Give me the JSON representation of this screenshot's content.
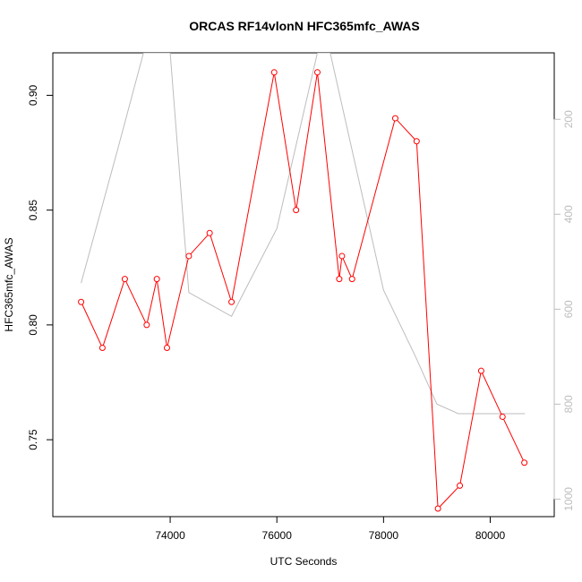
{
  "chart_data": {
    "type": "line",
    "title": "ORCAS RF14vlonN HFC365mfc_AWAS",
    "xlabel": "UTC Seconds",
    "ylabel": "HFC365mfc_AWAS",
    "xlim": [
      71800,
      81200
    ],
    "ylim": [
      0.7165,
      0.9185
    ],
    "x_ticks": [
      74000,
      76000,
      78000,
      80000
    ],
    "y_ticks": [
      0.75,
      0.8,
      0.85,
      0.9
    ],
    "y_tick_labels": [
      "0.75",
      "0.80",
      "0.85",
      "0.90"
    ],
    "y2_ticks": [
      200,
      400,
      600,
      800,
      1000
    ],
    "y2_lim": [
      1037,
      60
    ],
    "grid": false,
    "series": [
      {
        "color": "#ff0000",
        "marker": "open-circle",
        "axis": "left",
        "x": [
          72330,
          72730,
          73150,
          73560,
          73750,
          73940,
          74350,
          74740,
          75150,
          75950,
          76360,
          76760,
          77170,
          77220,
          77410,
          78220,
          78620,
          79020,
          79430,
          79830,
          80230,
          80640
        ],
        "y": [
          0.81,
          0.79,
          0.82,
          0.8,
          0.82,
          0.79,
          0.83,
          0.84,
          0.81,
          0.91,
          0.85,
          0.91,
          0.82,
          0.83,
          0.82,
          0.89,
          0.88,
          0.72,
          0.73,
          0.78,
          0.76,
          0.74
        ]
      },
      {
        "color": "#bdbdbd",
        "marker": "none",
        "axis": "right",
        "x": [
          72330,
          73000,
          73500,
          73750,
          74000,
          74350,
          75150,
          76000,
          76760,
          77000,
          78000,
          78600,
          79000,
          79400,
          80000,
          80650
        ],
        "y": [
          545,
          270,
          60,
          60,
          60,
          565,
          615,
          430,
          60,
          60,
          560,
          700,
          800,
          820,
          820,
          820
        ]
      }
    ]
  }
}
